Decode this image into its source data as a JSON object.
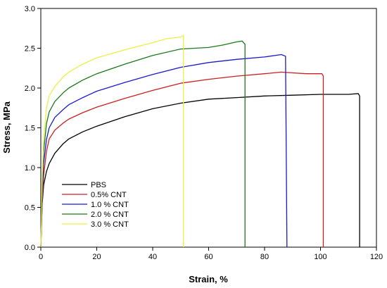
{
  "chart_data": {
    "type": "line",
    "title": "",
    "xlabel": "Strain, %",
    "ylabel": "Stress, MPa",
    "xlim": [
      0,
      120
    ],
    "ylim": [
      0,
      3.0
    ],
    "xticks": [
      "0",
      "20",
      "40",
      "60",
      "80",
      "100",
      "120"
    ],
    "yticks": [
      "0.0",
      "0.5",
      "1.0",
      "1.5",
      "2.0",
      "2.5",
      "3.0"
    ],
    "grid": false,
    "legend_position": "bottom-left",
    "series": [
      {
        "name": "PBS",
        "color": "#000000",
        "points": [
          [
            0,
            0
          ],
          [
            0.5,
            0.55
          ],
          [
            1,
            0.78
          ],
          [
            2,
            0.95
          ],
          [
            3,
            1.05
          ],
          [
            5,
            1.18
          ],
          [
            8,
            1.3
          ],
          [
            10,
            1.36
          ],
          [
            15,
            1.45
          ],
          [
            20,
            1.52
          ],
          [
            30,
            1.64
          ],
          [
            40,
            1.74
          ],
          [
            50,
            1.81
          ],
          [
            60,
            1.86
          ],
          [
            70,
            1.88
          ],
          [
            80,
            1.9
          ],
          [
            90,
            1.91
          ],
          [
            100,
            1.92
          ],
          [
            110,
            1.92
          ],
          [
            113.5,
            1.93
          ],
          [
            114,
            1.9
          ],
          [
            114,
            0
          ]
        ]
      },
      {
        "name": "0.5% CNT",
        "color": "#cc2020",
        "points": [
          [
            0,
            0
          ],
          [
            0.5,
            0.6
          ],
          [
            1,
            0.9
          ],
          [
            2,
            1.2
          ],
          [
            3,
            1.36
          ],
          [
            5,
            1.47
          ],
          [
            8,
            1.56
          ],
          [
            10,
            1.61
          ],
          [
            15,
            1.69
          ],
          [
            20,
            1.76
          ],
          [
            30,
            1.87
          ],
          [
            40,
            1.97
          ],
          [
            50,
            2.06
          ],
          [
            60,
            2.11
          ],
          [
            70,
            2.15
          ],
          [
            80,
            2.18
          ],
          [
            86,
            2.2
          ],
          [
            90,
            2.19
          ],
          [
            95,
            2.18
          ],
          [
            100.5,
            2.18
          ],
          [
            101,
            2.15
          ],
          [
            101,
            0
          ]
        ]
      },
      {
        "name": "1.0 % CNT",
        "color": "#1a1acc",
        "points": [
          [
            0,
            0
          ],
          [
            0.5,
            0.7
          ],
          [
            1,
            1.05
          ],
          [
            2,
            1.35
          ],
          [
            3,
            1.5
          ],
          [
            5,
            1.63
          ],
          [
            8,
            1.73
          ],
          [
            10,
            1.79
          ],
          [
            15,
            1.88
          ],
          [
            20,
            1.96
          ],
          [
            30,
            2.07
          ],
          [
            40,
            2.17
          ],
          [
            50,
            2.26
          ],
          [
            60,
            2.32
          ],
          [
            70,
            2.36
          ],
          [
            80,
            2.39
          ],
          [
            86,
            2.42
          ],
          [
            87.5,
            2.4
          ],
          [
            88,
            0
          ]
        ]
      },
      {
        "name": "2.0 % CNT",
        "color": "#1a7a1a",
        "points": [
          [
            0,
            0
          ],
          [
            0.5,
            0.8
          ],
          [
            1,
            1.2
          ],
          [
            2,
            1.55
          ],
          [
            3,
            1.7
          ],
          [
            5,
            1.83
          ],
          [
            8,
            1.94
          ],
          [
            10,
            2.0
          ],
          [
            15,
            2.1
          ],
          [
            20,
            2.18
          ],
          [
            30,
            2.3
          ],
          [
            40,
            2.41
          ],
          [
            50,
            2.49
          ],
          [
            60,
            2.51
          ],
          [
            65,
            2.54
          ],
          [
            70,
            2.58
          ],
          [
            72,
            2.59
          ],
          [
            73,
            2.55
          ],
          [
            73,
            0
          ]
        ]
      },
      {
        "name": "3.0 % CNT",
        "color": "#eeee44",
        "points": [
          [
            0,
            0
          ],
          [
            0.5,
            0.9
          ],
          [
            1,
            1.35
          ],
          [
            2,
            1.75
          ],
          [
            3,
            1.9
          ],
          [
            5,
            2.02
          ],
          [
            8,
            2.14
          ],
          [
            10,
            2.2
          ],
          [
            15,
            2.3
          ],
          [
            20,
            2.38
          ],
          [
            30,
            2.48
          ],
          [
            40,
            2.57
          ],
          [
            45,
            2.62
          ],
          [
            50,
            2.64
          ],
          [
            51,
            2.66
          ],
          [
            51,
            0
          ]
        ]
      }
    ]
  }
}
